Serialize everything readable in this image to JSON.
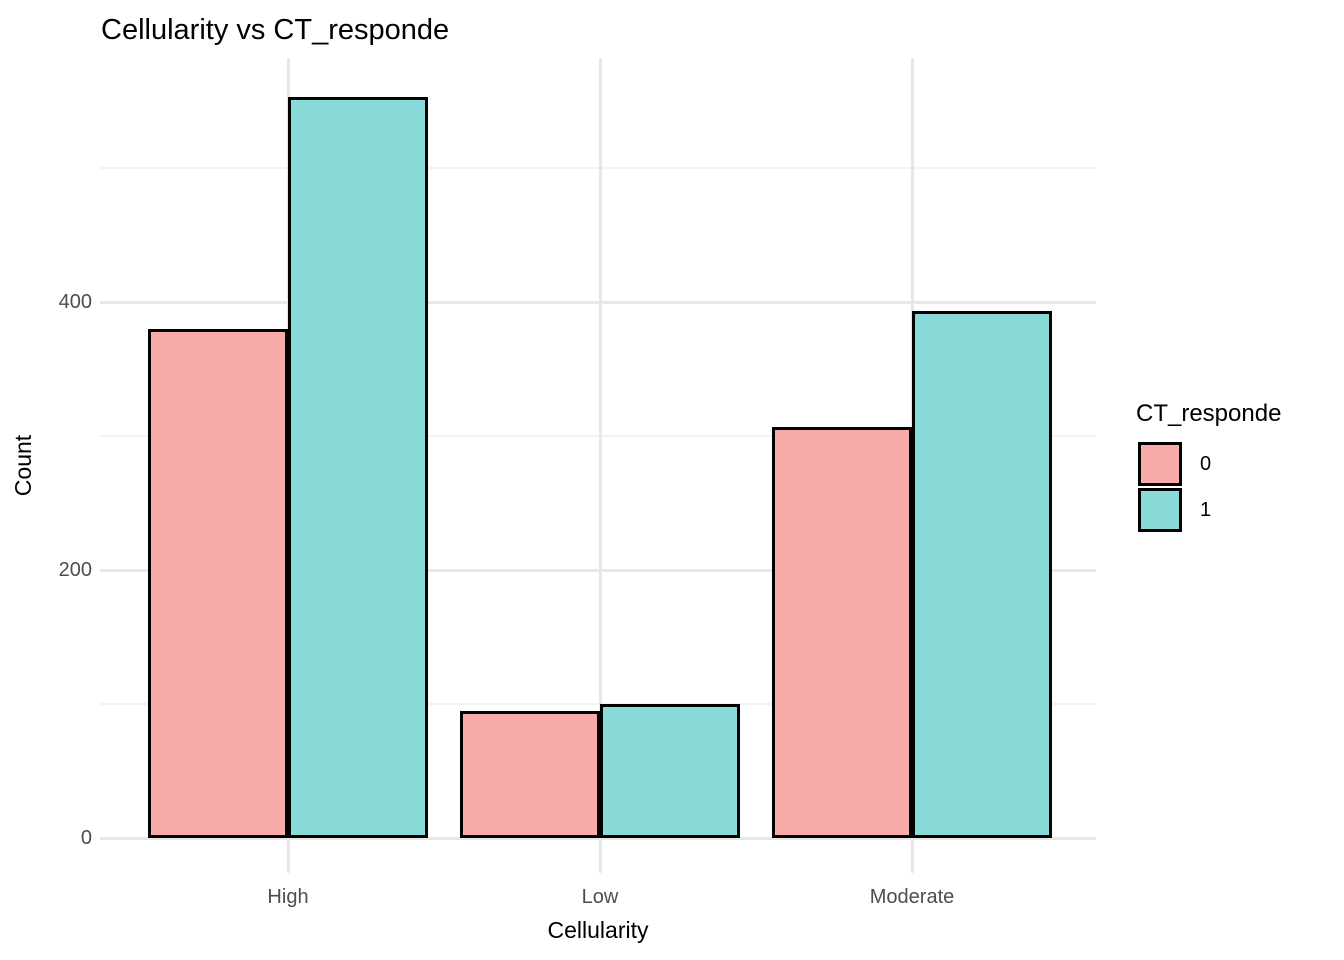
{
  "chart_data": {
    "type": "bar",
    "title": "Cellularity vs CT_responde",
    "xlabel": "Cellularity",
    "ylabel": "Count",
    "categories": [
      "High",
      "Low",
      "Moderate"
    ],
    "series": [
      {
        "name": "0",
        "color": "#F8AAA8",
        "values": [
          380,
          95,
          307
        ]
      },
      {
        "name": "1",
        "color": "#87DAD7",
        "values": [
          553,
          100,
          393
        ]
      }
    ],
    "bar_outline_color": "#000000",
    "ylim": [
      0,
      582
    ],
    "ytick_labels": [
      "0",
      "200",
      "400"
    ],
    "yticks_major": [
      0,
      200,
      400
    ],
    "yticks_minor": [
      100,
      300,
      500
    ],
    "grid": true,
    "legend_position": "right",
    "legend_title": "CT_responde",
    "colors": {
      "grid_major": "#E7E7E7",
      "grid_minor": "#F2F2F2",
      "tick_text": "#4D4D4D",
      "text": "#000000",
      "background": "#FFFFFF"
    }
  }
}
